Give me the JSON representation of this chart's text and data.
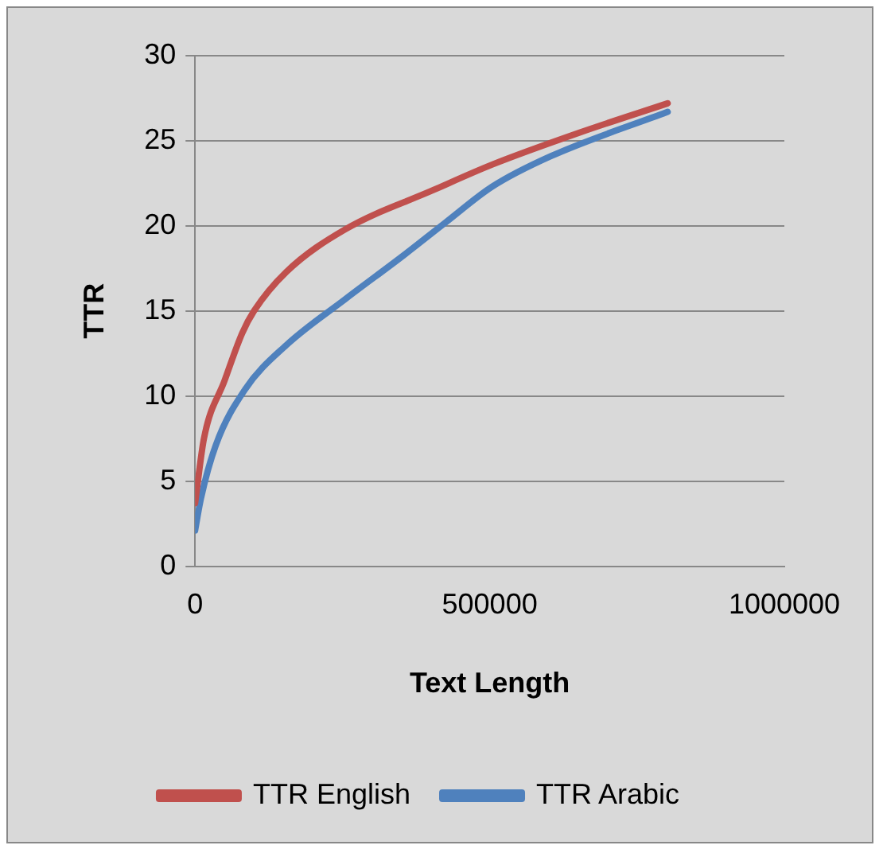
{
  "chart_data": {
    "type": "line",
    "xlabel": "Text Length",
    "ylabel": "TTR",
    "xlim": [
      0,
      1000000
    ],
    "xticks": [
      0,
      500000,
      1000000
    ],
    "ylim": [
      0,
      30
    ],
    "yticks": [
      0,
      5,
      10,
      15,
      20,
      25,
      30
    ],
    "grid": "y",
    "legend": "bottom",
    "marker": "none",
    "series": [
      {
        "name": "TTR English",
        "color": "#c0504d",
        "x": [
          0,
          15000,
          50000,
          80000,
          100000,
          155000,
          255000,
          404000,
          504000,
          654000,
          802000
        ],
        "values": [
          3.7,
          7.5,
          10.9,
          13.7,
          15.0,
          17.3,
          19.8,
          22.1,
          23.6,
          25.5,
          27.2
        ]
      },
      {
        "name": "TTR Arabic",
        "color": "#4f81bd",
        "x": [
          0,
          10000,
          35000,
          85000,
          155000,
          255000,
          355000,
          425000,
          504000,
          604000,
          802000
        ],
        "values": [
          2.1,
          4.0,
          7.1,
          10.4,
          13.0,
          15.7,
          18.3,
          20.2,
          22.3,
          24.1,
          26.7
        ]
      }
    ]
  }
}
